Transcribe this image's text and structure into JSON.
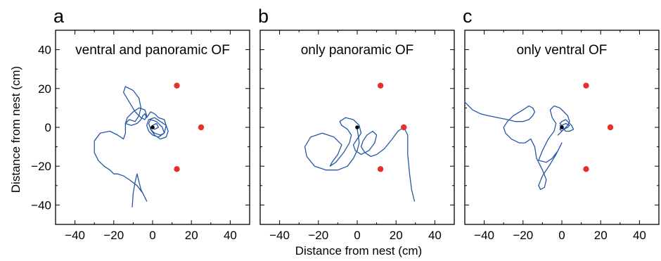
{
  "figure": {
    "shared_xlabel": "Distance from nest (cm)",
    "shared_ylabel": "Distance from nest (cm)"
  },
  "chart_data": [
    {
      "type": "line",
      "panel_letter": "a",
      "title": "ventral and panoramic OF",
      "xlim": [
        -50,
        50
      ],
      "ylim": [
        -50,
        50
      ],
      "x_ticks": [
        -40,
        -20,
        0,
        20,
        40
      ],
      "y_ticks": [
        -40,
        -20,
        0,
        20,
        40
      ],
      "trajectory_color": "#2457a4",
      "nest": {
        "x": 0,
        "y": 0,
        "color": "#000000"
      },
      "landmarks": [
        {
          "x": 12.5,
          "y": 21.5
        },
        {
          "x": 25,
          "y": 0
        },
        {
          "x": 12.5,
          "y": -21.5
        }
      ],
      "landmark_color": "#e8302b",
      "series": [
        {
          "x": [
            -10.5,
            -10,
            -9,
            -8,
            -7.5,
            -6,
            -4,
            -3,
            -5,
            -8,
            -12,
            -15,
            -18,
            -20,
            -22,
            -25,
            -28,
            -30,
            -30,
            -27,
            -22,
            -18,
            -15,
            -14,
            -14,
            -12,
            -9,
            -7,
            -6,
            -7,
            -10,
            -14,
            -15,
            -12,
            -9,
            -6,
            -4,
            -3,
            -4,
            -7,
            -10,
            -13,
            -14,
            -11,
            -8,
            -6,
            -5,
            -4,
            -3,
            -1,
            1,
            3,
            6,
            7,
            6,
            3,
            0,
            -2,
            -3,
            -2,
            1,
            4,
            7,
            8,
            7,
            4,
            1,
            -1,
            -2,
            -1,
            2,
            5,
            6,
            4,
            1,
            -1,
            0,
            2,
            3,
            1,
            0
          ],
          "y": [
            -41,
            -34,
            -28,
            -24,
            -26,
            -32,
            -36,
            -38,
            -34,
            -30,
            -27,
            -25,
            -24,
            -24,
            -22,
            -20,
            -17,
            -13,
            -7,
            -3,
            -2,
            -4,
            -6,
            -3,
            2,
            4,
            3,
            6,
            10,
            15,
            19,
            21,
            18,
            13,
            8,
            5,
            4,
            6,
            9,
            10,
            8,
            5,
            2,
            1,
            2,
            4,
            6,
            7,
            5,
            8,
            7,
            5,
            4,
            1,
            -3,
            -5,
            -4,
            -2,
            1,
            4,
            5,
            3,
            1,
            -2,
            -5,
            -6,
            -4,
            -1,
            2,
            4,
            3,
            0,
            -3,
            -4,
            -3,
            -1,
            1,
            2,
            0,
            -1,
            0
          ]
        }
      ]
    },
    {
      "type": "line",
      "panel_letter": "b",
      "title": "only panoramic OF",
      "xlim": [
        -50,
        50
      ],
      "ylim": [
        -50,
        50
      ],
      "x_ticks": [
        -40,
        -20,
        0,
        20,
        40
      ],
      "y_ticks": [
        -40,
        -20,
        0,
        20,
        40
      ],
      "trajectory_color": "#2457a4",
      "nest": {
        "x": 0,
        "y": 0,
        "color": "#000000"
      },
      "landmarks": [
        {
          "x": 12,
          "y": 21.5
        },
        {
          "x": 24,
          "y": 0
        },
        {
          "x": 12,
          "y": -21.5
        }
      ],
      "landmark_color": "#e8302b",
      "series": [
        {
          "x": [
            0,
            0.5,
            1,
            0,
            -2,
            -5,
            -10,
            -16,
            -22,
            -26,
            -27,
            -24,
            -18,
            -12,
            -8,
            -10,
            -13,
            -14,
            -11,
            -7,
            -4,
            -3,
            -5,
            -8,
            -9,
            -6,
            -2,
            1,
            2,
            0,
            -2,
            -1,
            2,
            6,
            9,
            10,
            8,
            5,
            3,
            2,
            4,
            7,
            10,
            14,
            18,
            21,
            24,
            26,
            26,
            27,
            28,
            29.5
          ],
          "y": [
            -1,
            -4,
            -8,
            -12,
            -16,
            -20,
            -22,
            -22,
            -20,
            -15,
            -10,
            -5,
            -3,
            -5,
            -9,
            -14,
            -18,
            -20,
            -18,
            -13,
            -8,
            -4,
            -1,
            1,
            3,
            5,
            4,
            1,
            -3,
            -6,
            -9,
            -12,
            -14,
            -12,
            -8,
            -4,
            -2,
            -4,
            -7,
            -10,
            -13,
            -15,
            -14,
            -11,
            -6,
            -2,
            0,
            -4,
            -14,
            -24,
            -32,
            -38
          ]
        }
      ]
    },
    {
      "type": "line",
      "panel_letter": "c",
      "title": "only ventral OF",
      "xlim": [
        -50,
        50
      ],
      "ylim": [
        -50,
        50
      ],
      "x_ticks": [
        -40,
        -20,
        0,
        20,
        40
      ],
      "y_ticks": [
        -40,
        -20,
        0,
        20,
        40
      ],
      "trajectory_color": "#2457a4",
      "nest": {
        "x": 0,
        "y": 0,
        "color": "#000000"
      },
      "landmarks": [
        {
          "x": 12.5,
          "y": 21.5
        },
        {
          "x": 25,
          "y": 0
        },
        {
          "x": 12.5,
          "y": -21.5
        }
      ],
      "landmark_color": "#e8302b",
      "series": [
        {
          "x": [
            -50,
            -46,
            -42,
            -38,
            -33,
            -28,
            -24,
            -20,
            -17,
            -15,
            -14,
            -15,
            -17,
            -20,
            -25,
            -28,
            -30,
            -29,
            -26,
            -22,
            -19,
            -16,
            -14,
            -13,
            -10,
            -8,
            -9,
            -11,
            -12,
            -10,
            -6,
            -3,
            -1,
            0,
            -2,
            -5,
            -8,
            -12,
            -10,
            -7,
            -4,
            -3,
            -5,
            -6,
            -4,
            -1,
            1,
            3,
            4,
            3,
            1,
            -1,
            -2,
            -1,
            1,
            3,
            4,
            2,
            0,
            -1,
            0,
            1,
            0,
            -1,
            0,
            2,
            3,
            5,
            6,
            4,
            2,
            1,
            0,
            -1,
            0
          ],
          "y": [
            13,
            9,
            7,
            6,
            5,
            4,
            3,
            3,
            4,
            6,
            8,
            10,
            11,
            9,
            6,
            3,
            0,
            -3,
            -6,
            -8,
            -8,
            -6,
            -10,
            -16,
            -22,
            -27,
            -31,
            -32,
            -30,
            -25,
            -19,
            -14,
            -10,
            -8,
            -12,
            -16,
            -18,
            -17,
            -12,
            -6,
            -2,
            2,
            5,
            9,
            11,
            10,
            8,
            6,
            3,
            1,
            -1,
            -3,
            -4,
            -3,
            -1,
            0,
            1,
            2,
            1,
            -1,
            -2,
            -1,
            1,
            2,
            3,
            4,
            3,
            1,
            -1,
            -2,
            -2,
            -1,
            0,
            1,
            0
          ]
        }
      ]
    }
  ]
}
